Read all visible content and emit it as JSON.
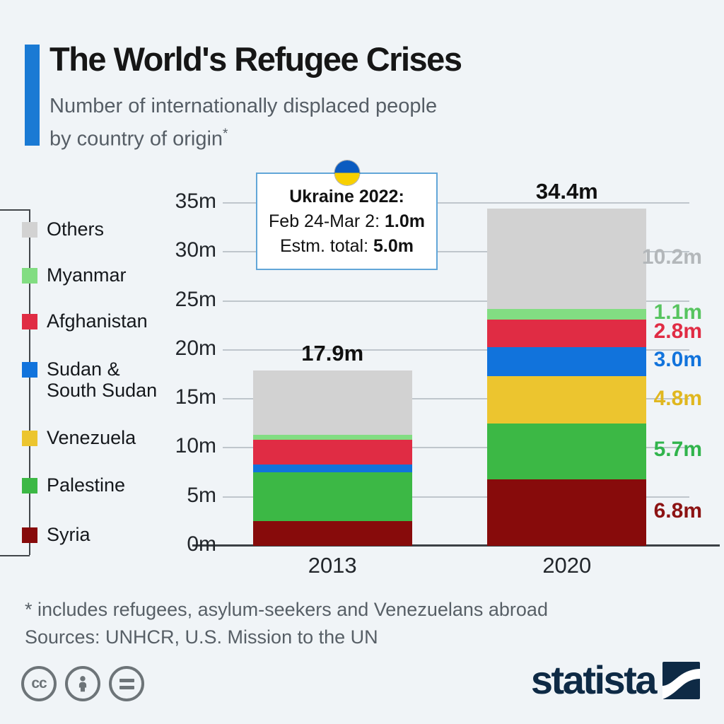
{
  "header": {
    "title": "The World's Refugee Crises",
    "subtitle_line1": "Number of internationally displaced people",
    "subtitle_line2": "by country of origin",
    "subtitle_asterisk": "*",
    "accent_color": "#1a7ad4"
  },
  "annotation": {
    "title": "Ukraine 2022:",
    "line2_label": "Feb 24-Mar 2:",
    "line2_value": "1.0m",
    "line3_label": "Estm. total:",
    "line3_value": "5.0m",
    "flag_top_color": "#0b5bc0",
    "flag_bottom_color": "#f8d000"
  },
  "chart_data": {
    "type": "bar",
    "stacked": true,
    "title": "Number of internationally displaced people by country of origin",
    "unit": "millions of people",
    "categories": [
      "2013",
      "2020"
    ],
    "series": [
      {
        "name": "Syria",
        "values": [
          2.5,
          6.8
        ],
        "color": "#870b0b",
        "label_2020": "6.8m",
        "label_color": "#8c1313"
      },
      {
        "name": "Palestine",
        "values": [
          5.0,
          5.7
        ],
        "color": "#3cb845",
        "label_2020": "5.7m",
        "label_color": "#31b44c"
      },
      {
        "name": "Venezuela",
        "values": [
          0,
          4.8
        ],
        "color": "#ecc52f",
        "label_2020": "4.8m",
        "label_color": "#e0b71f"
      },
      {
        "name": "Sudan & South Sudan",
        "values": [
          0.8,
          3.0
        ],
        "color": "#1173dc",
        "label_2020": "3.0m",
        "label_color": "#1173dc"
      },
      {
        "name": "Afghanistan",
        "values": [
          2.5,
          2.8
        ],
        "color": "#e02c44",
        "label_2020": "2.8m",
        "label_color": "#e02c44"
      },
      {
        "name": "Myanmar",
        "values": [
          0.5,
          1.1
        ],
        "color": "#82dd82",
        "label_2020": "1.1m",
        "label_color": "#57c45f"
      },
      {
        "name": "Others",
        "values": [
          6.6,
          10.2
        ],
        "color": "#d2d2d2",
        "label_2020": "10.2m",
        "label_color": "#b3b7ba"
      }
    ],
    "totals": [
      "17.9m",
      "34.4m"
    ],
    "y_ticks": [
      "0m",
      "5m",
      "10m",
      "15m",
      "20m",
      "25m",
      "30m",
      "35m"
    ],
    "ylim": [
      0,
      35
    ],
    "grid": true,
    "legend_position": "left"
  },
  "legend": {
    "items": [
      {
        "label": "Others",
        "color": "#d2d2d2"
      },
      {
        "label": "Myanmar",
        "color": "#82dd82"
      },
      {
        "label": "Afghanistan",
        "color": "#e02c44"
      },
      {
        "label": "Sudan &\nSouth Sudan",
        "color": "#1173dc"
      },
      {
        "label": "Venezuela",
        "color": "#ecc52f"
      },
      {
        "label": "Palestine",
        "color": "#3cb845"
      },
      {
        "label": "Syria",
        "color": "#870b0b"
      }
    ]
  },
  "footer": {
    "footnote": "* includes refugees, asylum-seekers and Venezuelans abroad",
    "sources": "Sources: UNHCR, U.S. Mission to the UN"
  },
  "branding": {
    "logo_text": "statista",
    "logo_color": "#0e2a45",
    "license_icons": [
      "cc-icon",
      "attribution-person-icon",
      "no-derivatives-equals-icon"
    ]
  }
}
